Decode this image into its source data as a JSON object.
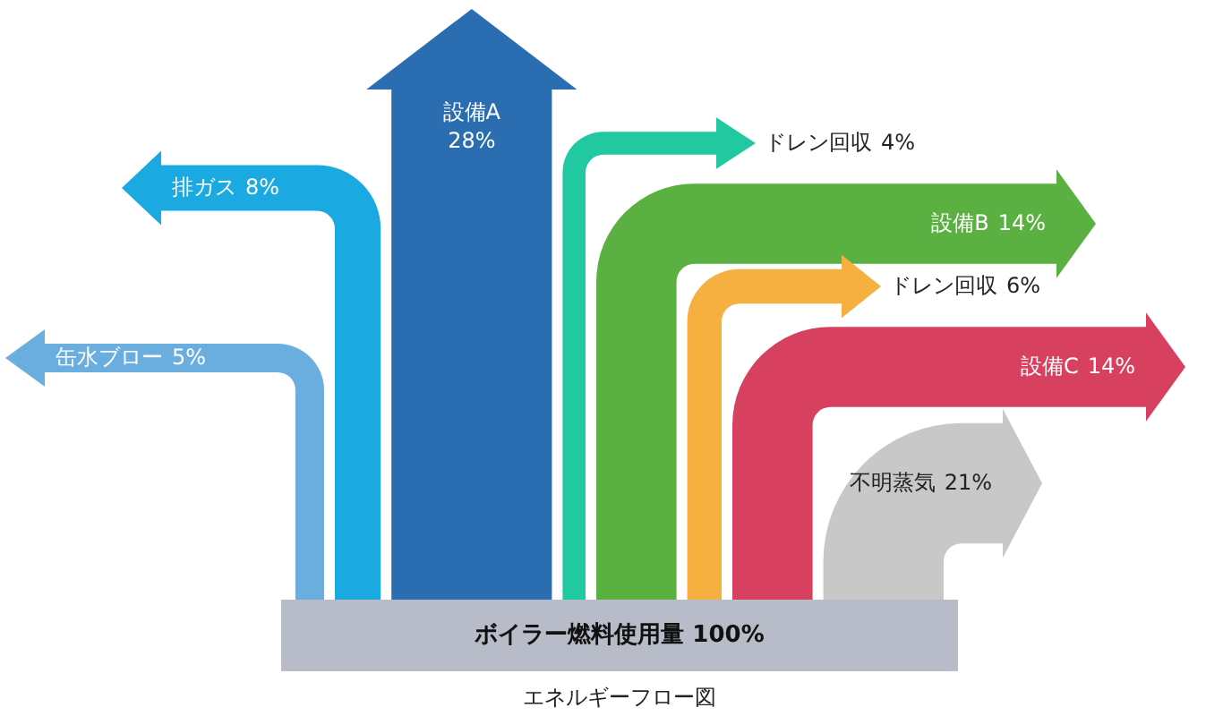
{
  "chart_data": {
    "type": "other",
    "title": "エネルギーフロー図",
    "categories": [
      "缶水ブロー",
      "排ガス",
      "設備A",
      "ドレン回収",
      "設備B",
      "ドレン回収",
      "設備C",
      "不明蒸気"
    ],
    "values": [
      5,
      8,
      28,
      4,
      14,
      6,
      14,
      21
    ],
    "value_labels": [
      "5%",
      "8%",
      "28%",
      "4%",
      "14%",
      "6%",
      "14%",
      "21%"
    ],
    "colors": [
      "#6aaee0",
      "#1aa9e0",
      "#2a6db0",
      "#20c9a0",
      "#5ab040",
      "#f5b040",
      "#d84060",
      "#c8c8c8"
    ],
    "annotations": [
      "ボイラー燃料使用量 100%"
    ]
  }
}
